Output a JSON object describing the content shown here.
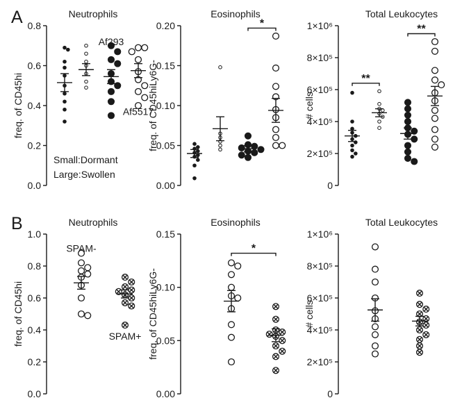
{
  "panel_labels": [
    "A",
    "B"
  ],
  "legend_note": {
    "line1": "Small:Dormant",
    "line2": "Large:Swollen"
  },
  "colors": {
    "ink": "#1a1a1a",
    "open_fill": "#ffffff"
  },
  "chart_data": [
    {
      "type": "scatter",
      "title": "Neutrophils",
      "ylabel": "freq. of CD45hi",
      "ylim": [
        0,
        0.8
      ],
      "ytick_labels": [
        "0.0",
        "0.2",
        "0.4",
        "0.6",
        "0.8"
      ],
      "groups": [
        {
          "marker": "small-filled",
          "values": [
            0.69,
            0.68,
            0.62,
            0.59,
            0.55,
            0.5,
            0.46,
            0.42,
            0.38,
            0.32
          ],
          "mean": 0.515,
          "sem": 0.045
        },
        {
          "marker": "small-open",
          "values": [
            0.7,
            0.66,
            0.62,
            0.6,
            0.56,
            0.52,
            0.49
          ],
          "mean": 0.58,
          "sem": 0.03
        },
        {
          "marker": "large-filled",
          "values": [
            0.7,
            0.67,
            0.63,
            0.61,
            0.56,
            0.52,
            0.5,
            0.47,
            0.42,
            0.35
          ],
          "mean": 0.545,
          "sem": 0.035
        },
        {
          "marker": "large-open",
          "values": [
            0.69,
            0.69,
            0.67,
            0.63,
            0.57,
            0.53,
            0.5,
            0.47,
            0.44,
            0.4
          ],
          "mean": 0.575,
          "sem": 0.035
        }
      ],
      "annotations": [
        {
          "text": "Af293",
          "near_group": 2,
          "value": 0.72
        },
        {
          "text": "Af5517",
          "near_group": 3,
          "value": 0.37
        }
      ]
    },
    {
      "type": "scatter",
      "title": "Eosinophils",
      "ylabel": "freq. of CD45hiLy6G-",
      "ylim": [
        0,
        0.2
      ],
      "ytick_labels": [
        "0.00",
        "0.05",
        "0.10",
        "0.15",
        "0.20"
      ],
      "groups": [
        {
          "marker": "small-filled",
          "values": [
            0.052,
            0.048,
            0.046,
            0.043,
            0.041,
            0.038,
            0.036,
            0.032,
            0.025,
            0.009
          ],
          "mean": 0.04,
          "sem": 0.005
        },
        {
          "marker": "small-open",
          "values": [
            0.148,
            0.065,
            0.06,
            0.055,
            0.05,
            0.045
          ],
          "mean": 0.071,
          "sem": 0.015
        },
        {
          "marker": "large-filled",
          "values": [
            0.062,
            0.051,
            0.049,
            0.047,
            0.045,
            0.043,
            0.041,
            0.038,
            0.035
          ],
          "mean": 0.046,
          "sem": 0.004
        },
        {
          "marker": "large-open",
          "values": [
            0.187,
            0.147,
            0.124,
            0.111,
            0.095,
            0.085,
            0.07,
            0.06,
            0.05,
            0.05
          ],
          "mean": 0.094,
          "sem": 0.015
        }
      ],
      "significance": [
        {
          "from_group": 2,
          "to_group": 3,
          "label": "*",
          "value": 0.197
        }
      ]
    },
    {
      "type": "scatter",
      "title": "Total Leukocytes",
      "ylabel": "# cells",
      "ylim": [
        0,
        1000000
      ],
      "ytick_labels": [
        "0",
        "2×10⁵",
        "4×10⁵",
        "6×10⁵",
        "8×10⁵",
        "1×10⁶"
      ],
      "groups": [
        {
          "marker": "small-filled",
          "values": [
            580000,
            400000,
            355000,
            330000,
            310000,
            290000,
            270000,
            250000,
            220000,
            200000,
            180000
          ],
          "mean": 310000,
          "sem": 35000
        },
        {
          "marker": "small-open",
          "values": [
            590000,
            510000,
            480000,
            470000,
            450000,
            430000,
            400000,
            360000
          ],
          "mean": 455000,
          "sem": 25000
        },
        {
          "marker": "large-filled",
          "values": [
            520000,
            480000,
            440000,
            400000,
            360000,
            340000,
            320000,
            290000,
            250000,
            210000,
            170000,
            150000
          ],
          "mean": 325000,
          "sem": 35000
        },
        {
          "marker": "large-open",
          "values": [
            900000,
            840000,
            720000,
            660000,
            630000,
            580000,
            530000,
            470000,
            420000,
            350000,
            290000,
            240000
          ],
          "mean": 560000,
          "sem": 60000
        }
      ],
      "significance": [
        {
          "from_group": 0,
          "to_group": 1,
          "label": "**",
          "value": 640000
        },
        {
          "from_group": 2,
          "to_group": 3,
          "label": "**",
          "value": 950000
        }
      ]
    },
    {
      "type": "scatter",
      "title": "Neutrophils",
      "ylabel": "freq. of CD45hi",
      "ylim": [
        0,
        1.0
      ],
      "ytick_labels": [
        "0.0",
        "0.2",
        "0.4",
        "0.6",
        "0.8",
        "1.0"
      ],
      "groups": [
        {
          "marker": "large-open",
          "values": [
            0.88,
            0.82,
            0.79,
            0.77,
            0.75,
            0.73,
            0.68,
            0.6,
            0.5,
            0.49
          ],
          "mean": 0.695,
          "sem": 0.04
        },
        {
          "marker": "large-crossed",
          "values": [
            0.73,
            0.7,
            0.67,
            0.65,
            0.64,
            0.62,
            0.6,
            0.57,
            0.55,
            0.43
          ],
          "mean": 0.625,
          "sem": 0.025
        }
      ],
      "annotations": [
        {
          "text": "SPAM-",
          "near_group": 0,
          "value": 0.91
        },
        {
          "text": "SPAM+",
          "near_group": 1,
          "value": 0.36
        }
      ]
    },
    {
      "type": "scatter",
      "title": "Eosinophils",
      "ylabel": "freq. of CD45hiLy6G-",
      "ylim": [
        0,
        0.15
      ],
      "ytick_labels": [
        "0.00",
        "0.05",
        "0.10",
        "0.15"
      ],
      "groups": [
        {
          "marker": "large-open",
          "values": [
            0.123,
            0.12,
            0.112,
            0.1,
            0.092,
            0.09,
            0.08,
            0.065,
            0.053,
            0.03
          ],
          "mean": 0.087,
          "sem": 0.01
        },
        {
          "marker": "large-crossed",
          "values": [
            0.082,
            0.07,
            0.06,
            0.058,
            0.056,
            0.054,
            0.05,
            0.045,
            0.04,
            0.035,
            0.022
          ],
          "mean": 0.055,
          "sem": 0.006
        }
      ],
      "significance": [
        {
          "from_group": 0,
          "to_group": 1,
          "label": "*",
          "value": 0.132
        }
      ]
    },
    {
      "type": "scatter",
      "title": "Total Leukocytes",
      "ylabel": "# cells",
      "ylim": [
        0,
        1000000
      ],
      "ytick_labels": [
        "0",
        "2×10⁵",
        "4×10⁵",
        "6×10⁵",
        "8×10⁵",
        "1×10⁶"
      ],
      "groups": [
        {
          "marker": "large-open",
          "values": [
            920000,
            780000,
            700000,
            600000,
            520000,
            470000,
            420000,
            370000,
            300000,
            250000
          ],
          "mean": 525000,
          "sem": 70000
        },
        {
          "marker": "large-crossed",
          "values": [
            630000,
            560000,
            530000,
            500000,
            470000,
            450000,
            430000,
            400000,
            370000,
            340000,
            300000,
            260000
          ],
          "mean": 455000,
          "sem": 30000
        }
      ]
    }
  ]
}
